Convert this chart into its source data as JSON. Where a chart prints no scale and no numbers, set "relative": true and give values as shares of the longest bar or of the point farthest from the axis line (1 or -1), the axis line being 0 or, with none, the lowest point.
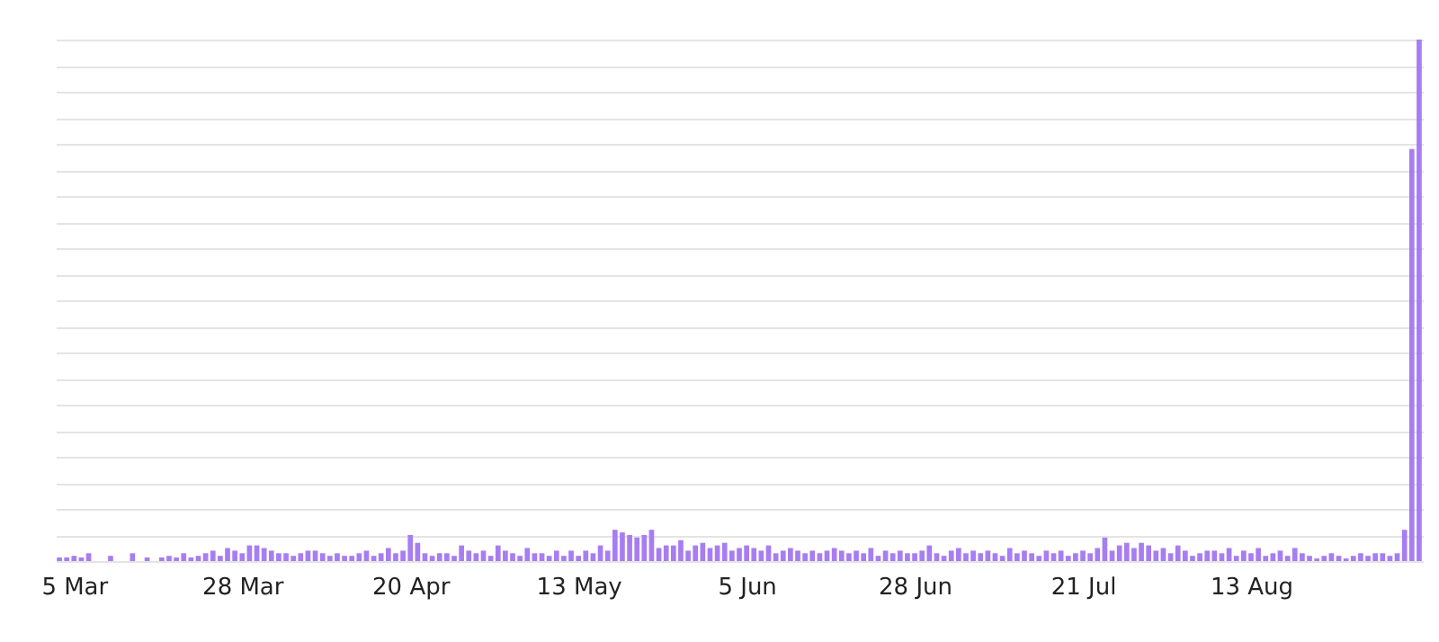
{
  "chart_data": {
    "type": "bar",
    "relative": true,
    "grid": "y",
    "color": "#a77df2",
    "xlim": [
      "--03-03",
      "--09-06"
    ],
    "xticks": [
      {
        "value": "--03-05",
        "label": "5 Mar"
      },
      {
        "value": "--03-28",
        "label": "28 Mar"
      },
      {
        "value": "--04-20",
        "label": "20 Apr"
      },
      {
        "value": "--05-13",
        "label": "13 May"
      },
      {
        "value": "--06-05",
        "label": "5 Jun"
      },
      {
        "value": "--06-28",
        "label": "28 Jun"
      },
      {
        "value": "--07-21",
        "label": "21 Jul"
      },
      {
        "value": "--08-13",
        "label": "13 Aug"
      }
    ],
    "x": [
      "--03-03",
      "--03-04",
      "--03-05",
      "--03-06",
      "--03-07",
      "--03-08",
      "--03-09",
      "--03-10",
      "--03-11",
      "--03-12",
      "--03-13",
      "--03-14",
      "--03-15",
      "--03-16",
      "--03-17",
      "--03-18",
      "--03-19",
      "--03-20",
      "--03-21",
      "--03-22",
      "--03-23",
      "--03-24",
      "--03-25",
      "--03-26",
      "--03-27",
      "--03-28",
      "--03-29",
      "--03-30",
      "--03-31",
      "--04-01",
      "--04-02",
      "--04-03",
      "--04-04",
      "--04-05",
      "--04-06",
      "--04-07",
      "--04-08",
      "--04-09",
      "--04-10",
      "--04-11",
      "--04-12",
      "--04-13",
      "--04-14",
      "--04-15",
      "--04-16",
      "--04-17",
      "--04-18",
      "--04-19",
      "--04-20",
      "--04-21",
      "--04-22",
      "--04-23",
      "--04-24",
      "--04-25",
      "--04-26",
      "--04-27",
      "--04-28",
      "--04-29",
      "--04-30",
      "--05-01",
      "--05-02",
      "--05-03",
      "--05-04",
      "--05-05",
      "--05-06",
      "--05-07",
      "--05-08",
      "--05-09",
      "--05-10",
      "--05-11",
      "--05-12",
      "--05-13",
      "--05-14",
      "--05-15",
      "--05-16",
      "--05-17",
      "--05-18",
      "--05-19",
      "--05-20",
      "--05-21",
      "--05-22",
      "--05-23",
      "--05-24",
      "--05-25",
      "--05-26",
      "--05-27",
      "--05-28",
      "--05-29",
      "--05-30",
      "--05-31",
      "--06-01",
      "--06-02",
      "--06-03",
      "--06-04",
      "--06-05",
      "--06-06",
      "--06-07",
      "--06-08",
      "--06-09",
      "--06-10",
      "--06-11",
      "--06-12",
      "--06-13",
      "--06-14",
      "--06-15",
      "--06-16",
      "--06-17",
      "--06-18",
      "--06-19",
      "--06-20",
      "--06-21",
      "--06-22",
      "--06-23",
      "--06-24",
      "--06-25",
      "--06-26",
      "--06-27",
      "--06-28",
      "--06-29",
      "--06-30",
      "--07-01",
      "--07-02",
      "--07-03",
      "--07-04",
      "--07-05",
      "--07-06",
      "--07-07",
      "--07-08",
      "--07-09",
      "--07-10",
      "--07-11",
      "--07-12",
      "--07-13",
      "--07-14",
      "--07-15",
      "--07-16",
      "--07-17",
      "--07-18",
      "--07-19",
      "--07-20",
      "--07-21",
      "--07-22",
      "--07-23",
      "--07-24",
      "--07-25",
      "--07-26",
      "--07-27",
      "--07-28",
      "--07-29",
      "--07-30",
      "--07-31",
      "--08-01",
      "--08-02",
      "--08-03",
      "--08-04",
      "--08-05",
      "--08-06",
      "--08-07",
      "--08-08",
      "--08-09",
      "--08-10",
      "--08-11",
      "--08-12",
      "--08-13",
      "--08-14",
      "--08-15",
      "--08-16",
      "--08-17",
      "--08-18",
      "--08-19",
      "--08-20",
      "--08-21",
      "--08-22",
      "--08-23",
      "--08-24",
      "--08-25",
      "--08-26",
      "--08-27",
      "--08-28",
      "--08-29",
      "--08-30",
      "--08-31",
      "--09-01",
      "--09-02",
      "--09-03",
      "--09-04",
      "--09-05"
    ],
    "values": [
      0.007,
      0.007,
      0.01,
      0.007,
      0.015,
      0,
      0,
      0.01,
      0,
      0,
      0.015,
      0,
      0.007,
      0,
      0.007,
      0.01,
      0.007,
      0.015,
      0.007,
      0.01,
      0.015,
      0.02,
      0.01,
      0.025,
      0.02,
      0.015,
      0.03,
      0.03,
      0.025,
      0.02,
      0.015,
      0.015,
      0.01,
      0.015,
      0.02,
      0.02,
      0.015,
      0.01,
      0.015,
      0.01,
      0.01,
      0.015,
      0.02,
      0.01,
      0.015,
      0.025,
      0.015,
      0.02,
      0.05,
      0.035,
      0.015,
      0.01,
      0.015,
      0.015,
      0.01,
      0.03,
      0.02,
      0.015,
      0.02,
      0.01,
      0.03,
      0.02,
      0.015,
      0.01,
      0.025,
      0.015,
      0.015,
      0.01,
      0.02,
      0.01,
      0.02,
      0.01,
      0.02,
      0.015,
      0.03,
      0.02,
      0.06,
      0.055,
      0.05,
      0.045,
      0.05,
      0.06,
      0.025,
      0.03,
      0.03,
      0.04,
      0.02,
      0.03,
      0.035,
      0.025,
      0.03,
      0.035,
      0.02,
      0.025,
      0.03,
      0.025,
      0.02,
      0.03,
      0.015,
      0.02,
      0.025,
      0.02,
      0.015,
      0.02,
      0.015,
      0.02,
      0.025,
      0.02,
      0.015,
      0.02,
      0.015,
      0.025,
      0.01,
      0.02,
      0.015,
      0.02,
      0.015,
      0.015,
      0.02,
      0.03,
      0.015,
      0.01,
      0.02,
      0.025,
      0.015,
      0.02,
      0.015,
      0.02,
      0.015,
      0.01,
      0.025,
      0.015,
      0.02,
      0.015,
      0.01,
      0.02,
      0.015,
      0.02,
      0.01,
      0.015,
      0.02,
      0.015,
      0.025,
      0.045,
      0.02,
      0.03,
      0.035,
      0.025,
      0.035,
      0.03,
      0.02,
      0.025,
      0.015,
      0.03,
      0.02,
      0.01,
      0.015,
      0.02,
      0.02,
      0.015,
      0.025,
      0.01,
      0.02,
      0.015,
      0.025,
      0.01,
      0.015,
      0.02,
      0.01,
      0.025,
      0.015,
      0.01,
      0.005,
      0.01,
      0.015,
      0.01,
      0.005,
      0.01,
      0.015,
      0.01,
      0.015,
      0.015,
      0.01,
      0.015,
      0.06,
      0.79,
      1
    ]
  }
}
